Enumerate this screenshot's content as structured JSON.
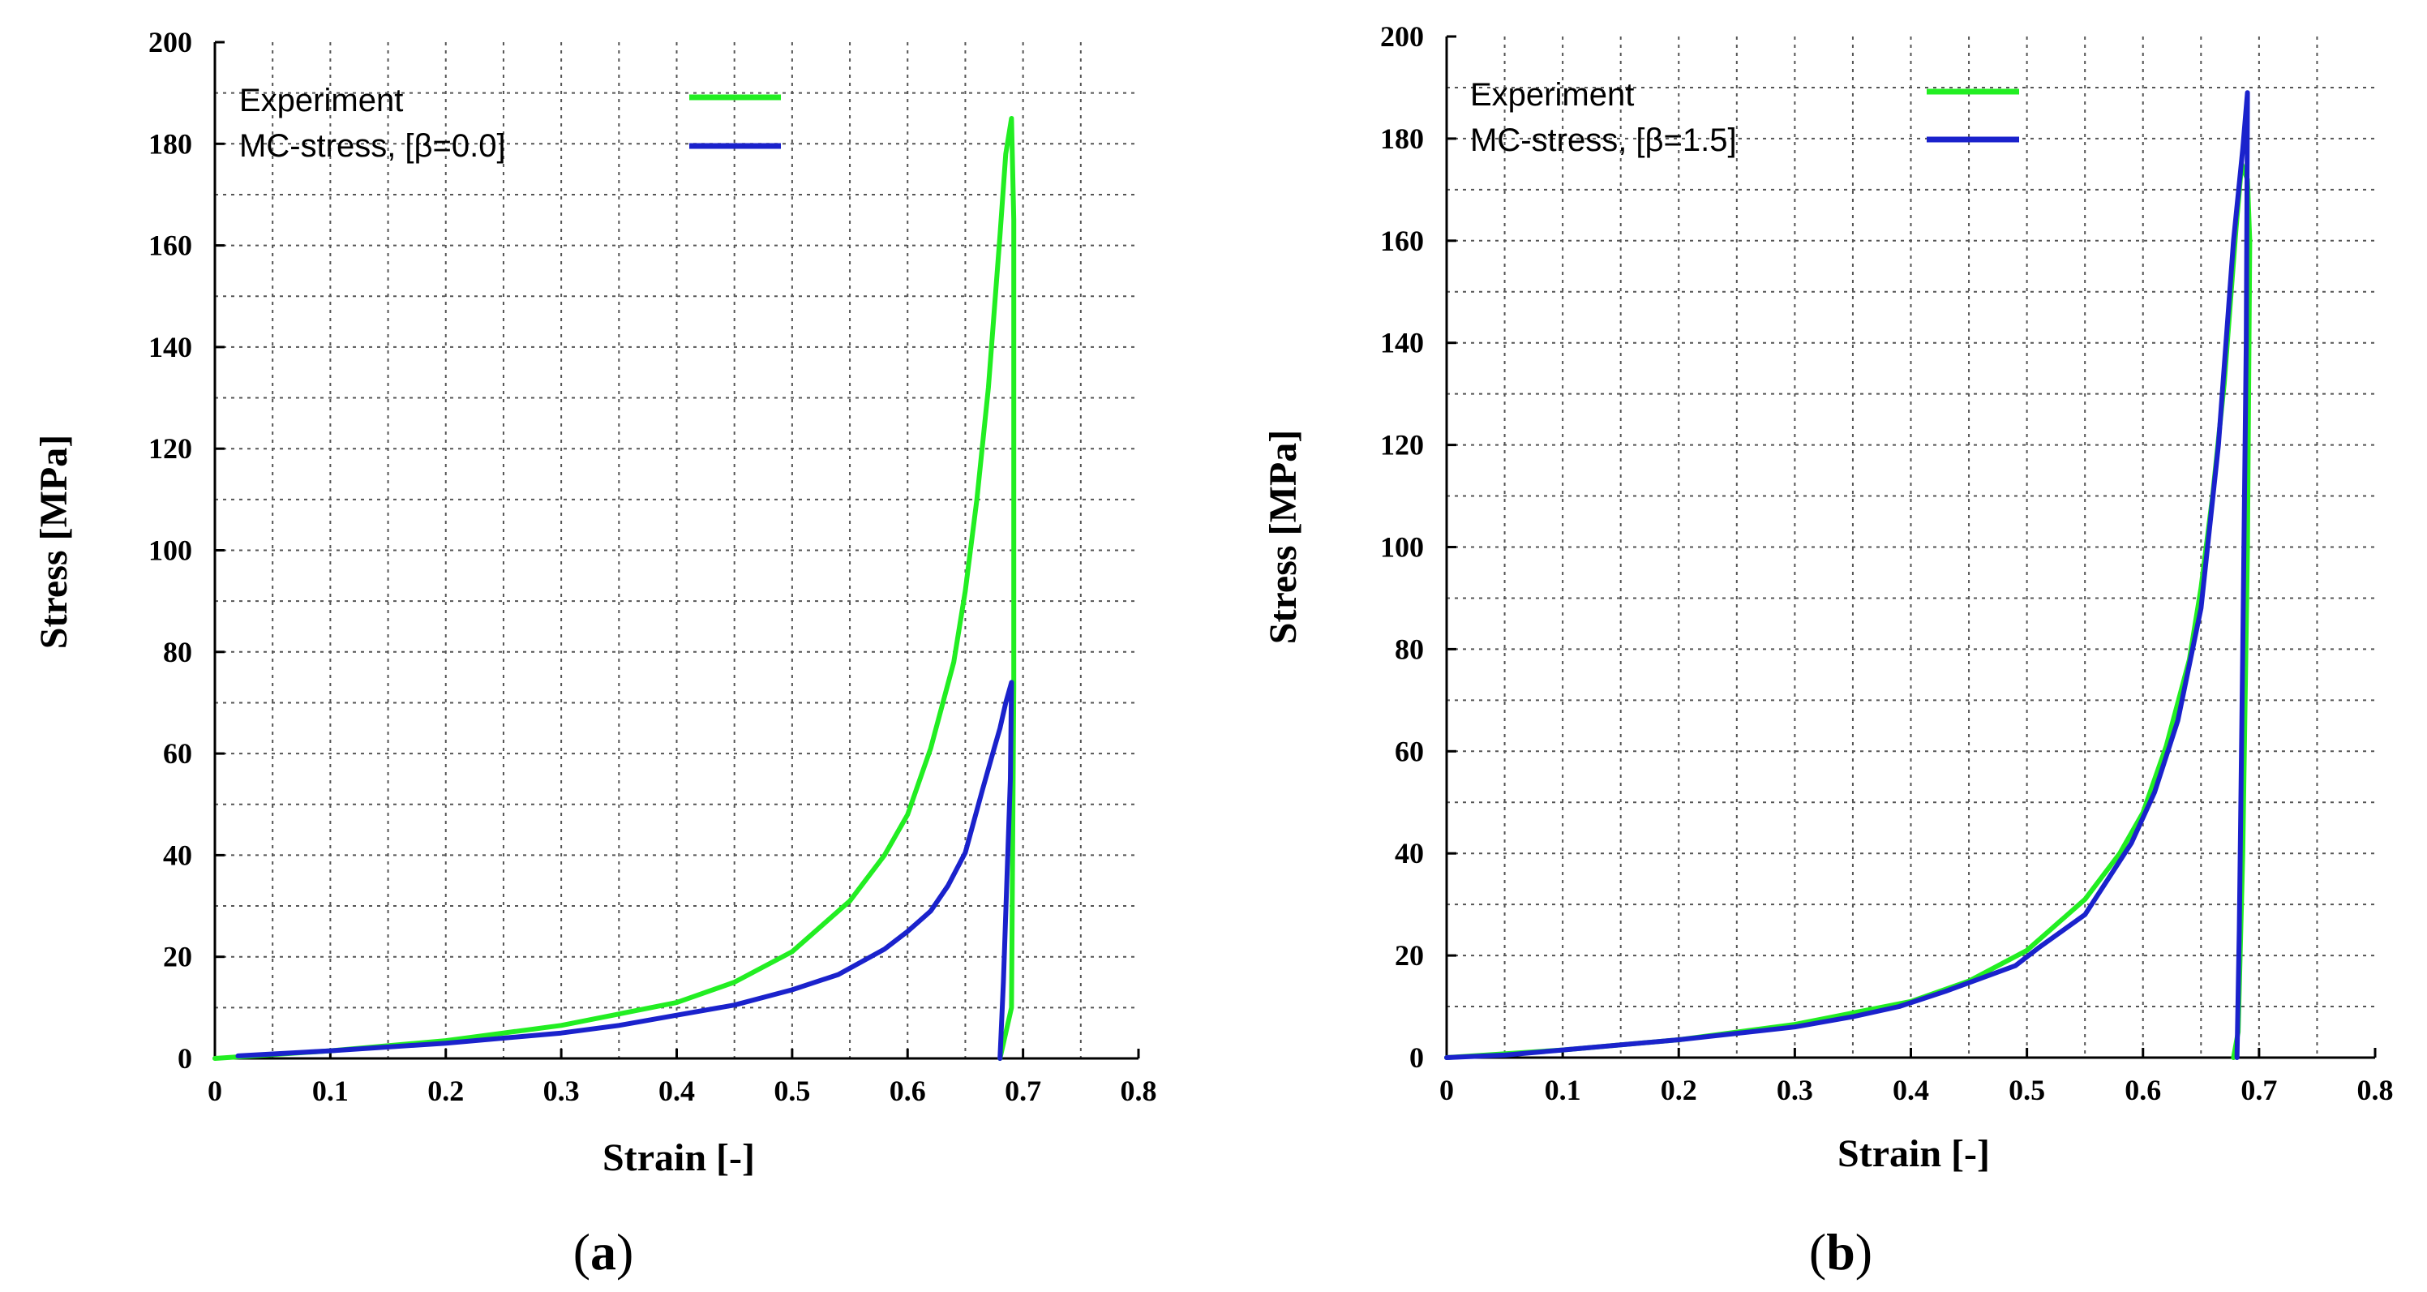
{
  "chart_data": [
    {
      "type": "line",
      "panel_label": "a",
      "xlabel": "Strain [-]",
      "ylabel": "Stress  [MPa]",
      "xlim": [
        0,
        0.8
      ],
      "ylim": [
        0,
        200
      ],
      "xticks": [
        0,
        0.1,
        0.2,
        0.3,
        0.4,
        0.5,
        0.6,
        0.7,
        0.8
      ],
      "xtick_labels": [
        "0",
        "0.1",
        "0.2",
        "0.3",
        "0.4",
        "0.5",
        "0.6",
        "0.7",
        "0.8"
      ],
      "yticks": [
        0,
        20,
        40,
        60,
        80,
        100,
        120,
        140,
        160,
        180,
        200
      ],
      "ytick_labels": [
        "0",
        "20",
        "40",
        "60",
        "80",
        "100",
        "120",
        "140",
        "160",
        "180",
        "200"
      ],
      "grid": true,
      "legend_position": "top-left",
      "series": [
        {
          "name": "Experiment",
          "color": "#22ee22",
          "x": [
            0,
            0.1,
            0.2,
            0.3,
            0.4,
            0.45,
            0.5,
            0.55,
            0.58,
            0.6,
            0.62,
            0.64,
            0.65,
            0.66,
            0.67,
            0.68,
            0.685,
            0.69,
            0.692,
            0.692,
            0.69,
            0.68
          ],
          "y": [
            0,
            1.5,
            3.5,
            6.5,
            11,
            15,
            21,
            31,
            40,
            48,
            61,
            78,
            92,
            110,
            132,
            162,
            178,
            185,
            165,
            73,
            10,
            0
          ]
        },
        {
          "name": "MC-stress, [β=0.0]",
          "color": "#1a22cc",
          "x": [
            0.02,
            0.1,
            0.2,
            0.3,
            0.35,
            0.4,
            0.45,
            0.5,
            0.54,
            0.58,
            0.6,
            0.62,
            0.635,
            0.65,
            0.665,
            0.675,
            0.68,
            0.685,
            0.69,
            0.689,
            0.686,
            0.683,
            0.68
          ],
          "y": [
            0.5,
            1.5,
            3,
            5,
            6.5,
            8.5,
            10.5,
            13.5,
            16.5,
            21.5,
            25,
            29,
            34,
            40.5,
            53,
            61,
            65,
            70,
            74,
            55,
            35,
            15,
            0
          ]
        }
      ]
    },
    {
      "type": "line",
      "panel_label": "b",
      "xlabel": "Strain [-]",
      "ylabel": "Stress  [MPa]",
      "xlim": [
        0,
        0.8
      ],
      "ylim": [
        0,
        200
      ],
      "xticks": [
        0,
        0.1,
        0.2,
        0.3,
        0.4,
        0.5,
        0.6,
        0.7,
        0.8
      ],
      "xtick_labels": [
        "0",
        "0.1",
        "0.2",
        "0.3",
        "0.4",
        "0.5",
        "0.6",
        "0.7",
        "0.8"
      ],
      "yticks": [
        0,
        20,
        40,
        60,
        80,
        100,
        120,
        140,
        160,
        180,
        200
      ],
      "ytick_labels": [
        "0",
        "20",
        "40",
        "60",
        "80",
        "100",
        "120",
        "140",
        "160",
        "180",
        "200"
      ],
      "grid": true,
      "legend_position": "top-left",
      "series": [
        {
          "name": "Experiment",
          "color": "#22ee22",
          "x": [
            0,
            0.1,
            0.2,
            0.3,
            0.4,
            0.45,
            0.5,
            0.55,
            0.58,
            0.6,
            0.62,
            0.64,
            0.65,
            0.66,
            0.67,
            0.68,
            0.685,
            0.69,
            0.692,
            0.69,
            0.686,
            0.682,
            0.678
          ],
          "y": [
            0,
            1.5,
            3.5,
            6.5,
            11,
            15,
            21,
            31,
            40,
            48,
            61,
            78,
            92,
            110,
            132,
            162,
            175,
            172,
            160,
            100,
            40,
            5,
            0
          ]
        },
        {
          "name": "MC-stress, [β=1.5]",
          "color": "#1a22cc",
          "x": [
            0,
            0.05,
            0.1,
            0.2,
            0.3,
            0.35,
            0.39,
            0.43,
            0.46,
            0.49,
            0.51,
            0.55,
            0.59,
            0.61,
            0.63,
            0.65,
            0.665,
            0.678,
            0.686,
            0.69,
            0.689,
            0.686,
            0.683,
            0.681
          ],
          "y": [
            0,
            0.5,
            1.5,
            3.5,
            6,
            8,
            10,
            13,
            15.5,
            18,
            21.5,
            28,
            42,
            52,
            66,
            88,
            120,
            160,
            178,
            189,
            140,
            80,
            25,
            0
          ]
        }
      ]
    }
  ]
}
